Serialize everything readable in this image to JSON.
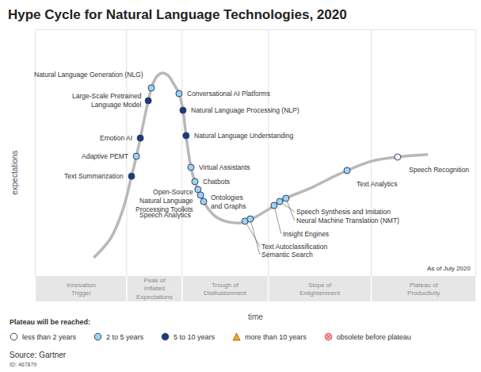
{
  "chart_data": {
    "type": "scatter",
    "title": "Hype Cycle for Natural Language Technologies, 2020",
    "x_label": "time",
    "y_label": "expectations",
    "note": "As of July 2020",
    "source": "Source: Gartner",
    "id": "ID: 467879",
    "legend_title": "Plateau will be reached:",
    "xlim": [
      0,
      100
    ],
    "ylim": [
      0,
      100
    ],
    "xticks": [],
    "yticks": [],
    "tick_labels": false,
    "grid": false,
    "curve": {
      "type": "line",
      "color": "#b8b8b8",
      "line_style": "solid",
      "x": [
        13.2,
        17.1,
        19.8,
        21.8,
        22.9,
        23.8,
        24.7,
        25.6,
        26.5,
        27.6,
        28.8,
        30.1,
        31.4,
        32.6,
        33.5,
        34.2,
        35.3,
        36.2,
        37.5,
        38.7,
        40.9,
        44.1,
        47.6,
        49.9,
        53.2,
        56.9,
        62.2,
        67.6,
        70.8,
        76.6,
        82.3,
        89.2
      ],
      "values": [
        7.4,
        15.5,
        26.8,
        40.6,
        48.7,
        56.1,
        63.9,
        71.3,
        77.4,
        81.3,
        82.6,
        81.6,
        78.1,
        74.2,
        67.4,
        57.1,
        44.2,
        38.4,
        32.9,
        28.7,
        24.2,
        21.9,
        21.9,
        23.9,
        27.4,
        31.6,
        35.5,
        40.3,
        42.9,
        46.8,
        48.4,
        49.4
      ]
    },
    "phases": [
      {
        "label": "Innovation\nTrigger",
        "start": 0,
        "end": 20.7
      },
      {
        "label": "Peak of\nInflated\nExpectations",
        "start": 20.7,
        "end": 33.3
      },
      {
        "label": "Trough of\nDisillusionment",
        "start": 33.3,
        "end": 52.9
      },
      {
        "label": "Slope of\nEnlightenment",
        "start": 52.9,
        "end": 76.3
      },
      {
        "label": "Plateau of\nProductivity",
        "start": 76.3,
        "end": 100
      }
    ],
    "series": [
      {
        "name": "less than 2 years",
        "color": "#ffffff",
        "marker": "circle",
        "labels": [
          "Speech Recognition"
        ],
        "x": [
          82.3
        ],
        "values": [
          48.4
        ]
      },
      {
        "name": "2 to 5 years",
        "color": "#9fd3f0",
        "marker": "circle",
        "labels": [
          "Natural Language Generation (NLG)",
          "Adaptive PEMT",
          "Conversational AI Platforms",
          "Virtual Assistants",
          "Chatbots",
          "Open-Source\nNatural Language\nProcessing Toolkits",
          "Speech Analytics",
          "Ontologies\nand Graphs",
          "Text Autoclassification",
          "Semantic Search",
          "Insight Engines",
          "Speech Synthesis and Imitation",
          "Neural Machine Translation (NMT)",
          "Text Analytics"
        ],
        "x": [
          26.3,
          22.9,
          32.6,
          35.3,
          36.2,
          36.9,
          37.5,
          38.2,
          47.6,
          48.8,
          54.2,
          55.5,
          56.9,
          70.8
        ],
        "values": [
          76.5,
          48.7,
          74.2,
          44.2,
          38.4,
          35.2,
          32.9,
          30.3,
          22.3,
          23.2,
          28.7,
          30.3,
          31.6,
          42.9
        ]
      },
      {
        "name": "5 to 10 years",
        "color": "#1c3b7c",
        "marker": "circle",
        "labels": [
          "Large-Scale Pretrained\nLanguage Model",
          "Emotion AI",
          "Text Summarization",
          "Natural Language Processing (NLP)",
          "Natural Language Understanding"
        ],
        "x": [
          25.6,
          23.8,
          21.8,
          33.5,
          34.2
        ],
        "values": [
          71.3,
          56.1,
          40.6,
          67.4,
          57.1
        ]
      },
      {
        "name": "more than 10 years",
        "color": "#f5a623",
        "marker": "triangle-up",
        "labels": [],
        "x": [],
        "values": []
      },
      {
        "name": "obsolete before plateau",
        "color": "#f4b6bc",
        "marker": "circle-x",
        "labels": [],
        "x": [],
        "values": []
      }
    ]
  }
}
